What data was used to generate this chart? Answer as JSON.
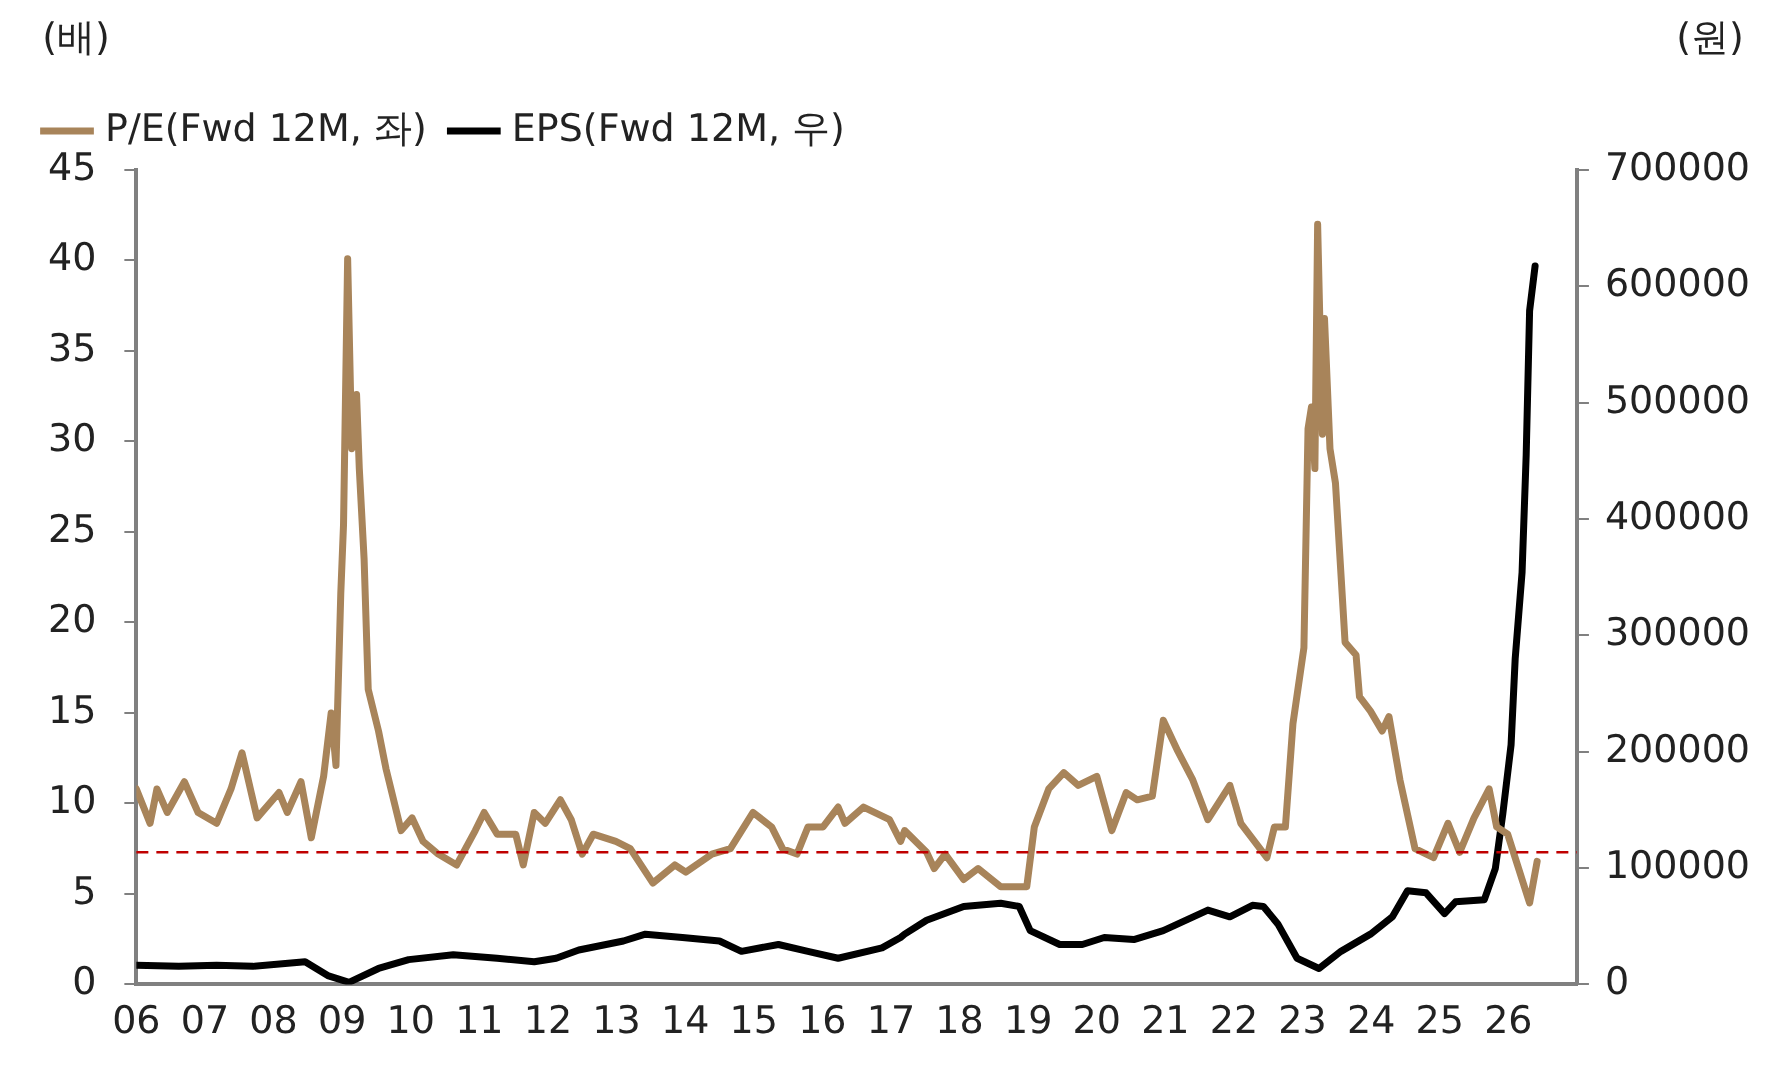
{
  "chart_data": {
    "type": "line",
    "ylabel": "(배)",
    "y2label": "(원)",
    "xlim": [
      2006,
      2027
    ],
    "xticks": [
      {
        "value": 2006,
        "label": "06"
      },
      {
        "value": 2007,
        "label": "07"
      },
      {
        "value": 2008,
        "label": "08"
      },
      {
        "value": 2009,
        "label": "09"
      },
      {
        "value": 2010,
        "label": "10"
      },
      {
        "value": 2011,
        "label": "11"
      },
      {
        "value": 2012,
        "label": "12"
      },
      {
        "value": 2013,
        "label": "13"
      },
      {
        "value": 2014,
        "label": "14"
      },
      {
        "value": 2015,
        "label": "15"
      },
      {
        "value": 2016,
        "label": "16"
      },
      {
        "value": 2017,
        "label": "17"
      },
      {
        "value": 2018,
        "label": "18"
      },
      {
        "value": 2019,
        "label": "19"
      },
      {
        "value": 2020,
        "label": "20"
      },
      {
        "value": 2021,
        "label": "21"
      },
      {
        "value": 2022,
        "label": "22"
      },
      {
        "value": 2023,
        "label": "23"
      },
      {
        "value": 2024,
        "label": "24"
      },
      {
        "value": 2025,
        "label": "25"
      },
      {
        "value": 2026,
        "label": "26"
      }
    ],
    "ylim": [
      0,
      45
    ],
    "yticks": [
      0,
      5,
      10,
      15,
      20,
      25,
      30,
      35,
      40,
      45
    ],
    "y2lim": [
      0,
      700000
    ],
    "y2ticks": [
      0,
      100000,
      200000,
      300000,
      400000,
      500000,
      600000,
      700000
    ],
    "grid": false,
    "legend": "top left",
    "marker": "none",
    "line_style": "solid",
    "ref_lines": [
      {
        "axis": "y",
        "value": 7.3,
        "color": "#c00000",
        "line_style": "dashed"
      }
    ],
    "series": [
      {
        "name": "P/E(Fwd 12M, 좌)",
        "color": "#a8845a",
        "axis": "y",
        "x": [
          2006.0,
          2006.2,
          2006.3,
          2006.45,
          2006.7,
          2006.9,
          2007.17,
          2007.38,
          2007.54,
          2007.76,
          2008.08,
          2008.2,
          2008.4,
          2008.55,
          2008.73,
          2008.84,
          2008.91,
          2008.98,
          2009.02,
          2009.08,
          2009.14,
          2009.21,
          2009.25,
          2009.32,
          2009.38,
          2009.53,
          2009.64,
          2009.86,
          2010.02,
          2010.18,
          2010.4,
          2010.67,
          2010.94,
          2011.07,
          2011.26,
          2011.53,
          2011.64,
          2011.8,
          2011.96,
          2012.18,
          2012.34,
          2012.5,
          2012.66,
          2012.99,
          2013.2,
          2013.53,
          2013.85,
          2014.01,
          2014.39,
          2014.66,
          2014.99,
          2015.26,
          2015.42,
          2015.63,
          2015.79,
          2016.01,
          2016.23,
          2016.33,
          2016.6,
          2016.98,
          2017.14,
          2017.2,
          2017.52,
          2017.63,
          2017.79,
          2018.06,
          2018.27,
          2018.6,
          2018.98,
          2019.09,
          2019.3,
          2019.52,
          2019.73,
          2020.0,
          2020.22,
          2020.43,
          2020.59,
          2020.81,
          2020.97,
          2021.18,
          2021.4,
          2021.62,
          2021.94,
          2022.1,
          2022.48,
          2022.59,
          2022.75,
          2022.86,
          2023.02,
          2023.08,
          2023.13,
          2023.18,
          2023.22,
          2023.29,
          2023.32,
          2023.4,
          2023.48,
          2023.62,
          2023.78,
          2023.83,
          2023.99,
          2024.16,
          2024.26,
          2024.42,
          2024.64,
          2024.91,
          2025.12,
          2025.29,
          2025.5,
          2025.72,
          2025.83,
          2025.99,
          2026.15,
          2026.31,
          2026.42
        ],
        "values": [
          10.8,
          8.9,
          10.8,
          9.5,
          11.2,
          9.5,
          8.9,
          10.8,
          12.8,
          9.2,
          10.6,
          9.5,
          11.2,
          8.1,
          11.5,
          15,
          12.1,
          21.6,
          25.4,
          40.1,
          29.6,
          32.6,
          28.5,
          23.5,
          16.3,
          14,
          11.9,
          8.5,
          9.2,
          7.9,
          7.2,
          6.6,
          8.5,
          9.5,
          8.3,
          8.3,
          6.6,
          9.5,
          8.9,
          10.2,
          9.1,
          7.2,
          8.3,
          7.9,
          7.5,
          5.6,
          6.6,
          6.2,
          7.2,
          7.5,
          9.5,
          8.7,
          7.5,
          7.2,
          8.7,
          8.7,
          9.8,
          8.9,
          9.8,
          9.1,
          7.9,
          8.5,
          7.3,
          6.4,
          7.2,
          5.8,
          6.4,
          5.4,
          5.4,
          8.7,
          10.8,
          11.7,
          11,
          11.5,
          8.5,
          10.6,
          10.2,
          10.4,
          14.6,
          12.9,
          11.3,
          9.1,
          11,
          8.9,
          7,
          8.7,
          8.7,
          14.4,
          18.6,
          30.7,
          31.9,
          28.5,
          42,
          30.4,
          36.8,
          29.6,
          27.7,
          18.9,
          18.2,
          15.9,
          15.1,
          14,
          14.8,
          11.3,
          7.5,
          7,
          8.9,
          7.3,
          9.2,
          10.8,
          8.7,
          8.3,
          6.4,
          4.5,
          6.8
        ]
      },
      {
        "name": "EPS(Fwd 12M, 우)",
        "color": "#000000",
        "axis": "y2",
        "x": [
          2006.0,
          2006.62,
          2007.17,
          2007.7,
          2008.46,
          2008.79,
          2009.1,
          2009.53,
          2009.97,
          2010.62,
          2011.26,
          2011.8,
          2012.12,
          2012.45,
          2013.1,
          2013.42,
          2013.96,
          2014.5,
          2014.82,
          2015.36,
          2015.79,
          2016.23,
          2016.87,
          2017.14,
          2017.2,
          2017.52,
          2018.06,
          2018.6,
          2018.87,
          2019.03,
          2019.46,
          2019.79,
          2020.11,
          2020.54,
          2020.97,
          2021.62,
          2021.94,
          2022.27,
          2022.43,
          2022.64,
          2022.92,
          2023.24,
          2023.56,
          2023.99,
          2024.31,
          2024.53,
          2024.8,
          2025.07,
          2025.23,
          2025.65,
          2025.81,
          2025.92,
          2026.04,
          2026.1,
          2026.2,
          2026.26,
          2026.31,
          2026.39
        ],
        "values": [
          16500,
          15500,
          16500,
          15500,
          19500,
          7600,
          1800,
          13700,
          21300,
          25400,
          22500,
          19500,
          22500,
          29600,
          37300,
          43200,
          40300,
          37300,
          28400,
          34300,
          28400,
          22500,
          31400,
          40300,
          43200,
          55100,
          67000,
          69800,
          67000,
          46200,
          34300,
          34300,
          40300,
          38500,
          46200,
          63900,
          58100,
          68000,
          67000,
          52000,
          22500,
          13700,
          28400,
          43200,
          58100,
          80500,
          78700,
          60900,
          71000,
          72800,
          99500,
          146900,
          206000,
          280100,
          354000,
          454700,
          579000,
          617500
        ]
      }
    ]
  }
}
